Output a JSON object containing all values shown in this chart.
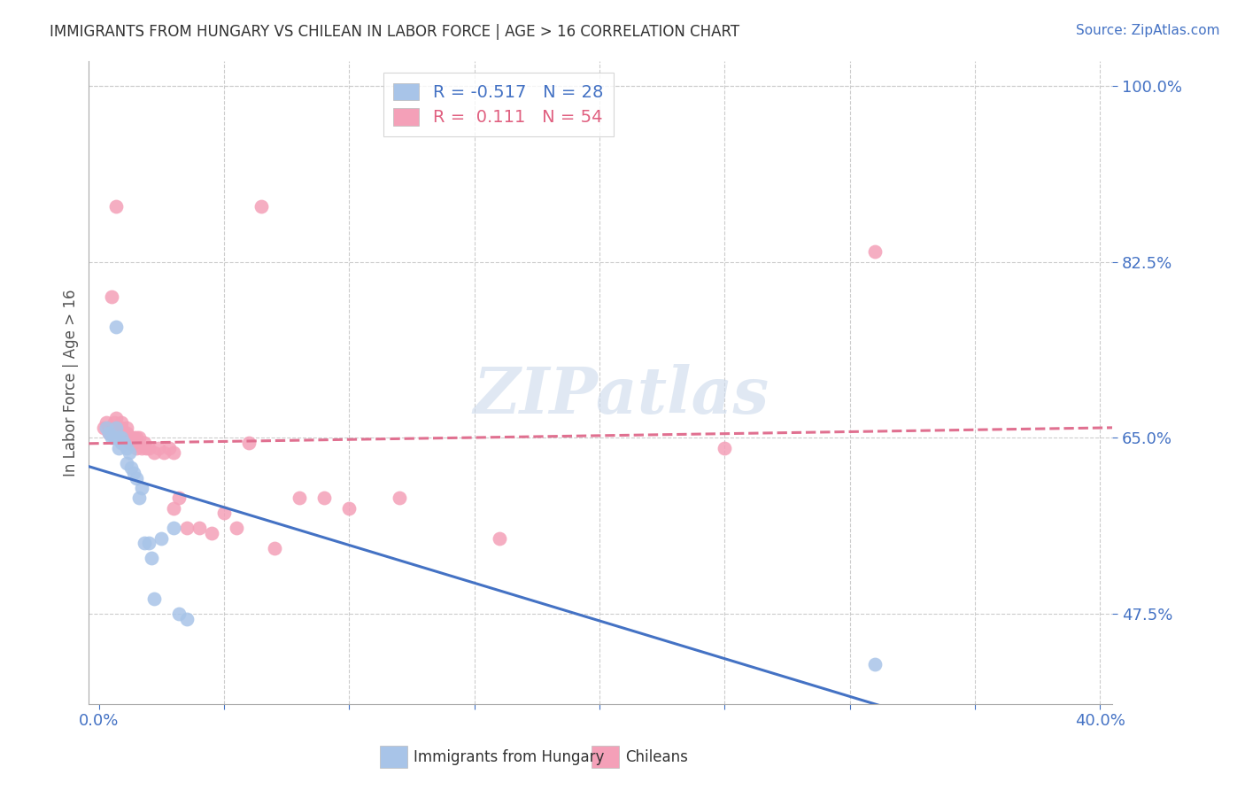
{
  "title": "IMMIGRANTS FROM HUNGARY VS CHILEAN IN LABOR FORCE | AGE > 16 CORRELATION CHART",
  "source": "Source: ZipAtlas.com",
  "ylabel": "In Labor Force | Age > 16",
  "hungary_color": "#a8c4e8",
  "chilean_color": "#f4a0b8",
  "hungary_line_color": "#4472c4",
  "chilean_line_color": "#e07090",
  "hungary_r": -0.517,
  "hungary_n": 28,
  "chilean_r": 0.111,
  "chilean_n": 54,
  "watermark": "ZIPatlas",
  "background_color": "#ffffff",
  "grid_color": "#cccccc",
  "xlim": [
    -0.004,
    0.405
  ],
  "ylim": [
    0.385,
    1.025
  ],
  "ytick_positions": [
    0.475,
    0.65,
    0.825,
    1.0
  ],
  "ytick_labels": [
    "47.5%",
    "65.0%",
    "82.5%",
    "100.0%"
  ],
  "xtick_positions": [
    0.0,
    0.05,
    0.1,
    0.15,
    0.2,
    0.25,
    0.3,
    0.35,
    0.4
  ],
  "xtick_labels": [
    "0.0%",
    "",
    "",
    "",
    "",
    "",
    "",
    "",
    "40.0%"
  ],
  "hungary_x": [
    0.003,
    0.004,
    0.005,
    0.006,
    0.007,
    0.007,
    0.008,
    0.008,
    0.009,
    0.009,
    0.01,
    0.011,
    0.011,
    0.012,
    0.013,
    0.014,
    0.015,
    0.016,
    0.017,
    0.018,
    0.02,
    0.021,
    0.022,
    0.025,
    0.03,
    0.032,
    0.035,
    0.31
  ],
  "hungary_y": [
    0.66,
    0.655,
    0.65,
    0.65,
    0.76,
    0.66,
    0.65,
    0.64,
    0.65,
    0.645,
    0.645,
    0.64,
    0.625,
    0.635,
    0.62,
    0.615,
    0.61,
    0.59,
    0.6,
    0.545,
    0.545,
    0.53,
    0.49,
    0.55,
    0.56,
    0.475,
    0.47,
    0.425
  ],
  "chilean_x": [
    0.002,
    0.003,
    0.004,
    0.004,
    0.005,
    0.005,
    0.005,
    0.006,
    0.006,
    0.007,
    0.007,
    0.008,
    0.008,
    0.009,
    0.009,
    0.01,
    0.01,
    0.011,
    0.011,
    0.012,
    0.012,
    0.013,
    0.013,
    0.014,
    0.014,
    0.015,
    0.015,
    0.016,
    0.017,
    0.018,
    0.019,
    0.02,
    0.022,
    0.024,
    0.026,
    0.028,
    0.03,
    0.03,
    0.032,
    0.035,
    0.04,
    0.045,
    0.05,
    0.055,
    0.06,
    0.065,
    0.07,
    0.08,
    0.09,
    0.1,
    0.12,
    0.16,
    0.25,
    0.31
  ],
  "chilean_y": [
    0.66,
    0.665,
    0.66,
    0.655,
    0.79,
    0.66,
    0.655,
    0.665,
    0.66,
    0.88,
    0.67,
    0.66,
    0.655,
    0.665,
    0.66,
    0.655,
    0.65,
    0.66,
    0.655,
    0.65,
    0.645,
    0.65,
    0.645,
    0.65,
    0.645,
    0.65,
    0.64,
    0.65,
    0.64,
    0.645,
    0.64,
    0.64,
    0.635,
    0.64,
    0.635,
    0.64,
    0.635,
    0.58,
    0.59,
    0.56,
    0.56,
    0.555,
    0.575,
    0.56,
    0.645,
    0.88,
    0.54,
    0.59,
    0.59,
    0.58,
    0.59,
    0.55,
    0.64,
    0.835
  ]
}
